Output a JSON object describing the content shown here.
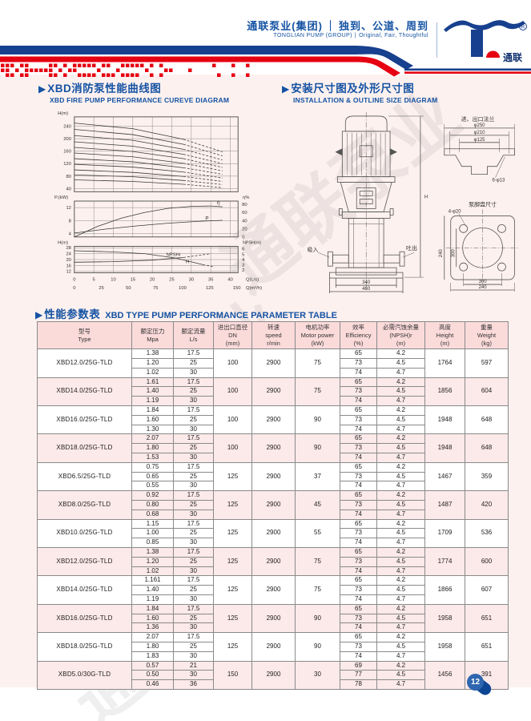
{
  "header": {
    "brand_zh": "通联泵业(集团)",
    "slogan_zh": "独到、公道、周到",
    "brand_en": "TONGLIAN PUMP (GROUP)",
    "slogan_en": "Original, Fair, Thoughtful",
    "sep": "｜",
    "sep_en": "|",
    "logo_text": "通联",
    "registered_mark": "R"
  },
  "sections": {
    "marker": "▶",
    "curve_zh": "XBD消防泵性能曲线图",
    "curve_en": "XBD FIRE PUMP PERFORMANCE CUREVE DIAGRAM",
    "install_zh": "安装尺寸图及外形尺寸图",
    "install_en": "INSTALLATION & OUTLINE SIZE DIAGRAM",
    "table_zh": "性能参数表",
    "table_en": "XBD TYPE PUMP PERFORMANCE PARAMETER TABLE"
  },
  "chart_data": {
    "type": "line",
    "title": "XBD fire pump performance curves",
    "x_primary": {
      "label": "Q(L/s)",
      "ticks": [
        0,
        5,
        10,
        15,
        20,
        25,
        30,
        35,
        40
      ],
      "max": 42
    },
    "x_secondary": {
      "label": "Q(m³/h)",
      "ticks": [
        0,
        25,
        50,
        75,
        100,
        125,
        150
      ]
    },
    "panel_head": {
      "ylabel": "H(m)",
      "yticks": [
        40,
        80,
        120,
        160,
        200,
        240
      ],
      "ylim": [
        30,
        270
      ],
      "curves": [
        {
          "points": [
            [
              0,
              250
            ],
            [
              15,
              232
            ],
            [
              28,
              198
            ],
            [
              38,
              158
            ]
          ]
        },
        {
          "points": [
            [
              0,
              230
            ],
            [
              15,
              213
            ],
            [
              28,
              182
            ],
            [
              38,
              145
            ]
          ]
        },
        {
          "points": [
            [
              0,
              210
            ],
            [
              15,
              195
            ],
            [
              28,
              166
            ],
            [
              38,
              132
            ]
          ]
        },
        {
          "points": [
            [
              0,
              190
            ],
            [
              15,
              176
            ],
            [
              28,
              150
            ],
            [
              38,
              120
            ]
          ]
        },
        {
          "points": [
            [
              0,
              172
            ],
            [
              15,
              159
            ],
            [
              28,
              136
            ],
            [
              38,
              108
            ]
          ]
        },
        {
          "points": [
            [
              0,
              154
            ],
            [
              15,
              142
            ],
            [
              28,
              121
            ],
            [
              38,
              97
            ]
          ]
        },
        {
          "points": [
            [
              0,
              136
            ],
            [
              15,
              126
            ],
            [
              28,
              107
            ],
            [
              38,
              86
            ]
          ]
        },
        {
          "points": [
            [
              0,
              118
            ],
            [
              15,
              109
            ],
            [
              28,
              93
            ],
            [
              38,
              74
            ]
          ]
        },
        {
          "points": [
            [
              0,
              100
            ],
            [
              15,
              92
            ],
            [
              28,
              79
            ],
            [
              38,
              63
            ]
          ]
        },
        {
          "points": [
            [
              0,
              84
            ],
            [
              15,
              78
            ],
            [
              28,
              66
            ],
            [
              38,
              53
            ]
          ]
        },
        {
          "points": [
            [
              0,
              68
            ],
            [
              15,
              63
            ],
            [
              28,
              54
            ],
            [
              38,
              43
            ]
          ]
        }
      ]
    },
    "panel_power": {
      "ylabel_left": "P.(kW)",
      "yticks_left": [
        4,
        8,
        12
      ],
      "ylim_left": [
        3,
        14
      ],
      "ylabel_right": "η%",
      "yticks_right": [
        0,
        20,
        40,
        60,
        80
      ],
      "ylim_right": [
        0,
        88
      ],
      "curves": [
        {
          "name": "η",
          "axis": "right",
          "points": [
            [
              0,
              0
            ],
            [
              6,
              26
            ],
            [
              12,
              46
            ],
            [
              18,
              60
            ],
            [
              24,
              70
            ],
            [
              30,
              75
            ],
            [
              35,
              76
            ],
            [
              38,
              74
            ]
          ]
        },
        {
          "name": "P",
          "axis": "left",
          "points": [
            [
              0,
              4.2
            ],
            [
              8,
              5.4
            ],
            [
              16,
              6.4
            ],
            [
              24,
              7.2
            ],
            [
              32,
              7.8
            ],
            [
              38,
              8.1
            ]
          ]
        }
      ]
    },
    "panel_npsh": {
      "ylabel_left": "H(m)",
      "yticks_left": [
        12,
        16,
        20,
        24,
        28
      ],
      "ylim_left": [
        11,
        29
      ],
      "ylabel_right": "NPSH(m)",
      "yticks_right": [
        2,
        3,
        4,
        5,
        6
      ],
      "ylim_right": [
        1.5,
        6.5
      ],
      "curves": [
        {
          "name": "NPSHr",
          "axis": "right",
          "points": [
            [
              0,
              3.5
            ],
            [
              10,
              3.6
            ],
            [
              20,
              3.9
            ],
            [
              28,
              4.4
            ],
            [
              35,
              5.1
            ]
          ]
        },
        {
          "name": "H",
          "axis": "left",
          "points": [
            [
              0,
              26
            ],
            [
              10,
              25.2
            ],
            [
              18,
              24
            ],
            [
              26,
              21
            ],
            [
              33,
              16.5
            ],
            [
              36,
              15
            ]
          ]
        }
      ]
    }
  },
  "install": {
    "flange_title": "进、出口法兰",
    "flange_d1": "φ250",
    "flange_d2": "φ210",
    "flange_d3": "φ125",
    "flange_holes": "6-φ13",
    "foot_title": "泵脚盘尺寸",
    "foot_holes": "4-φ20",
    "suction": "吸入",
    "discharge": "吐出",
    "base_w1": "340",
    "base_w2": "460",
    "height_mark": "H",
    "foot_v_outer": "240",
    "foot_v_inner": "300",
    "foot_h_inner": "300",
    "foot_h_outer": "240"
  },
  "table": {
    "headers": [
      {
        "zh": "型号",
        "en": "Type",
        "sub": ""
      },
      {
        "zh": "额定压力",
        "en": "Mpa",
        "sub": ""
      },
      {
        "zh": "额定流量",
        "en": "L/s",
        "sub": ""
      },
      {
        "zh": "进出口直径",
        "en": "DN",
        "sub": "(mm)"
      },
      {
        "zh": "转速",
        "en": "speed",
        "sub": "r/min"
      },
      {
        "zh": "电机功率",
        "en": "Motor power",
        "sub": "(kW)"
      },
      {
        "zh": "效率",
        "en": "Efficiency",
        "sub": "(%)"
      },
      {
        "zh": "必需汽蚀余量",
        "en": "(NPSH)r",
        "sub": "(m)"
      },
      {
        "zh": "高度",
        "en": "Height",
        "sub": "(m)"
      },
      {
        "zh": "重量",
        "en": "Weight",
        "sub": "(kg)"
      }
    ],
    "groups": [
      {
        "model": "XBD12.0/25G-TLD",
        "pressure": [
          "1.38",
          "1.20",
          "1.02"
        ],
        "flow": [
          "17.5",
          "25",
          "30"
        ],
        "dn": "100",
        "speed": "2900",
        "power": "75",
        "efficiency": [
          "65",
          "73",
          "74"
        ],
        "npsh": [
          "4.2",
          "4.5",
          "4.7"
        ],
        "height": "1764",
        "weight": "597"
      },
      {
        "model": "XBD14.0/25G-TLD",
        "pressure": [
          "1.61",
          "1.40",
          "1.19"
        ],
        "flow": [
          "17.5",
          "25",
          "30"
        ],
        "dn": "100",
        "speed": "2900",
        "power": "75",
        "efficiency": [
          "65",
          "73",
          "74"
        ],
        "npsh": [
          "4.2",
          "4.5",
          "4.7"
        ],
        "height": "1856",
        "weight": "604"
      },
      {
        "model": "XBD16.0/25G-TLD",
        "pressure": [
          "1.84",
          "1.60",
          "1.30"
        ],
        "flow": [
          "17.5",
          "25",
          "30"
        ],
        "dn": "100",
        "speed": "2900",
        "power": "90",
        "efficiency": [
          "65",
          "73",
          "74"
        ],
        "npsh": [
          "4.2",
          "4.5",
          "4.7"
        ],
        "height": "1948",
        "weight": "648"
      },
      {
        "model": "XBD18.0/25G-TLD",
        "pressure": [
          "2.07",
          "1.80",
          "1.53"
        ],
        "flow": [
          "17.5",
          "25",
          "30"
        ],
        "dn": "100",
        "speed": "2900",
        "power": "90",
        "efficiency": [
          "65",
          "73",
          "74"
        ],
        "npsh": [
          "4.2",
          "4.5",
          "4.7"
        ],
        "height": "1948",
        "weight": "648"
      },
      {
        "model": "XBD6.5/25G-TLD",
        "pressure": [
          "0.75",
          "0.65",
          "0.55"
        ],
        "flow": [
          "17.5",
          "25",
          "30"
        ],
        "dn": "125",
        "speed": "2900",
        "power": "37",
        "efficiency": [
          "65",
          "73",
          "74"
        ],
        "npsh": [
          "4.2",
          "4.5",
          "4.7"
        ],
        "height": "1467",
        "weight": "359"
      },
      {
        "model": "XBD8.0/25G-TLD",
        "pressure": [
          "0.92",
          "0.80",
          "0.68"
        ],
        "flow": [
          "17.5",
          "25",
          "30"
        ],
        "dn": "125",
        "speed": "2900",
        "power": "45",
        "efficiency": [
          "65",
          "73",
          "74"
        ],
        "npsh": [
          "4.2",
          "4.5",
          "4.7"
        ],
        "height": "1487",
        "weight": "420"
      },
      {
        "model": "XBD10.0/25G-TLD",
        "pressure": [
          "1.15",
          "1.00",
          "0.85"
        ],
        "flow": [
          "17.5",
          "25",
          "30"
        ],
        "dn": "125",
        "speed": "2900",
        "power": "55",
        "efficiency": [
          "65",
          "73",
          "74"
        ],
        "npsh": [
          "4.2",
          "4.5",
          "4.7"
        ],
        "height": "1709",
        "weight": "536"
      },
      {
        "model": "XBD12.0/25G-TLD",
        "pressure": [
          "1.38",
          "1.20",
          "1.02"
        ],
        "flow": [
          "17.5",
          "25",
          "30"
        ],
        "dn": "125",
        "speed": "2900",
        "power": "75",
        "efficiency": [
          "65",
          "73",
          "74"
        ],
        "npsh": [
          "4.2",
          "4.5",
          "4.7"
        ],
        "height": "1774",
        "weight": "600"
      },
      {
        "model": "XBD14.0/25G-TLD",
        "pressure": [
          "1.161",
          "1.40",
          "1.19"
        ],
        "flow": [
          "17.5",
          "25",
          "30"
        ],
        "dn": "125",
        "speed": "2900",
        "power": "75",
        "efficiency": [
          "65",
          "73",
          "74"
        ],
        "npsh": [
          "4.2",
          "4.5",
          "4.7"
        ],
        "height": "1866",
        "weight": "607"
      },
      {
        "model": "XBD16.0/25G-TLD",
        "pressure": [
          "1.84",
          "1.60",
          "1.36"
        ],
        "flow": [
          "17.5",
          "25",
          "30"
        ],
        "dn": "125",
        "speed": "2900",
        "power": "90",
        "efficiency": [
          "65",
          "73",
          "74"
        ],
        "npsh": [
          "4.2",
          "4.5",
          "4.7"
        ],
        "height": "1958",
        "weight": "651"
      },
      {
        "model": "XBD18.0/25G-TLD",
        "pressure": [
          "2.07",
          "1.80",
          "1.83"
        ],
        "flow": [
          "17.5",
          "25",
          "30"
        ],
        "dn": "125",
        "speed": "2900",
        "power": "90",
        "efficiency": [
          "65",
          "73",
          "74"
        ],
        "npsh": [
          "4.2",
          "4.5",
          "4.7"
        ],
        "height": "1958",
        "weight": "651"
      },
      {
        "model": "XBD5.0/30G-TLD",
        "pressure": [
          "0.57",
          "0.50",
          "0.46"
        ],
        "flow": [
          "21",
          "30",
          "36"
        ],
        "dn": "150",
        "speed": "2900",
        "power": "30",
        "efficiency": [
          "69",
          "77",
          "78"
        ],
        "npsh": [
          "4.2",
          "4.5",
          "4.7"
        ],
        "height": "1456",
        "weight": "391"
      }
    ]
  },
  "footer": {
    "page_number": "12"
  },
  "watermark": "通联泵业",
  "colors": {
    "brand_blue": "#1553a3",
    "band_blue": "#17408e",
    "brand_red": "#e60012",
    "pink_bg": "#fdf1ef",
    "table_header_pink": "#fbdada",
    "row_pink": "#fce9e9"
  }
}
